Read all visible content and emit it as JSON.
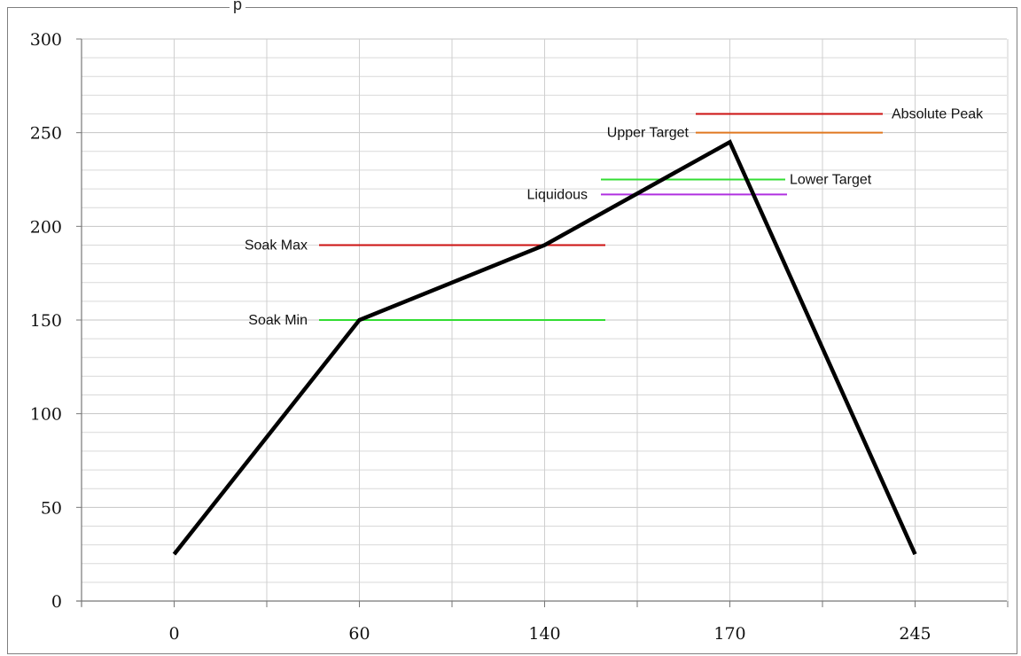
{
  "chart_data": {
    "type": "line",
    "title": "",
    "xlabel": "",
    "ylabel": "",
    "x_categories": [
      "0",
      "60",
      "140",
      "170",
      "245"
    ],
    "ylim": [
      0,
      300
    ],
    "y_ticks": [
      0,
      50,
      100,
      150,
      200,
      250,
      300
    ],
    "grid": true,
    "series": [
      {
        "values": [
          25,
          150,
          190,
          245,
          25
        ],
        "color": "#000000"
      }
    ],
    "reference_lines": [
      {
        "label": "Soak Min",
        "value": 150,
        "color": "#33dd33",
        "label_side": "left"
      },
      {
        "label": "Soak Max",
        "value": 190,
        "color": "#cc1111",
        "label_side": "left"
      },
      {
        "label": "Liquidous",
        "value": 217,
        "color": "#b030e0",
        "label_side": "left"
      },
      {
        "label": "Lower Target",
        "value": 225,
        "color": "#33dd33",
        "label_side": "right"
      },
      {
        "label": "Upper Target",
        "value": 250,
        "color": "#e07820",
        "label_side": "left"
      },
      {
        "label": "Absolute Peak",
        "value": 260,
        "color": "#cc1111",
        "label_side": "right"
      }
    ]
  }
}
